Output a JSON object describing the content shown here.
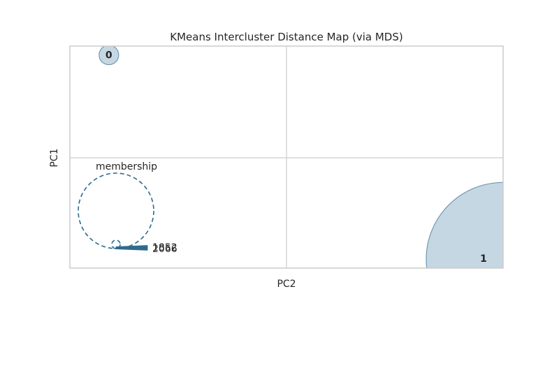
{
  "chart_data": {
    "type": "scatter",
    "title": "KMeans Intercluster Distance Map (via MDS)",
    "xlabel": "PC2",
    "ylabel": "PC1",
    "xlim": [
      -1,
      1
    ],
    "ylim": [
      -1,
      1
    ],
    "grid": true,
    "axis_ticks": "hidden",
    "colors": {
      "cluster_fill": "#c5d7e2",
      "cluster_edge": "#6f98b3",
      "legend": "#2e6b8c",
      "grid": "#cccccc",
      "frame": "#cccccc"
    },
    "clusters": [
      {
        "label": "0",
        "x": -0.82,
        "y": 0.92,
        "size": 18
      },
      {
        "label": "1",
        "x": 1.0,
        "y": -0.92,
        "size": 2066
      }
    ],
    "legend": {
      "title": "membership",
      "location": "lower-left",
      "entries": [
        "1852",
        "2066"
      ]
    }
  }
}
